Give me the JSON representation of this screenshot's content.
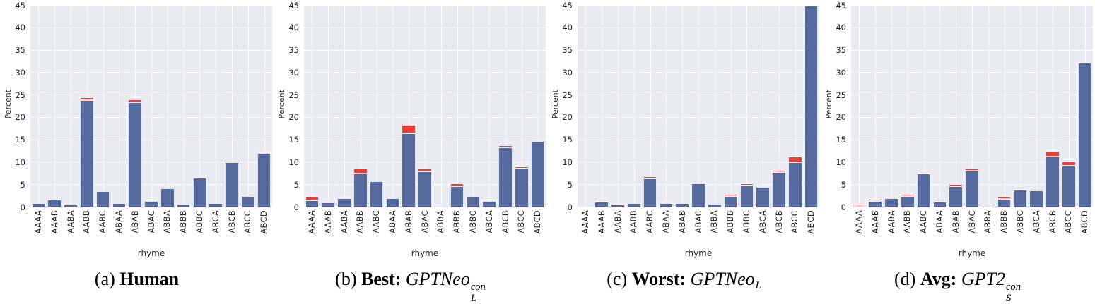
{
  "figure": {
    "ylabel": "Percent",
    "xlabel": "rhyme",
    "ymax": 45,
    "yticks": [
      0,
      5,
      10,
      15,
      20,
      25,
      30,
      35,
      40,
      45
    ],
    "categories": [
      "AAAA",
      "AAAB",
      "AABA",
      "AABB",
      "AABC",
      "ABAA",
      "ABAB",
      "ABAC",
      "ABBA",
      "ABBB",
      "ABBC",
      "ABCA",
      "ABCB",
      "ABCC",
      "ABCD"
    ],
    "colors": {
      "bar_primary": "#56699c",
      "bar_top": "#ee3b33",
      "plot_background": "#eaeaf2",
      "gridline": "#ffffff",
      "tick_text": "#262626"
    }
  },
  "chart_data": [
    {
      "type": "bar",
      "subtype": "stacked",
      "caption": {
        "index": "(a)",
        "label": "Human",
        "colon": "",
        "model": null
      },
      "xlabel": "rhyme",
      "ylabel": "Percent",
      "ylim": [
        0,
        45
      ],
      "grid": true,
      "legend": false,
      "categories": [
        "AAAA",
        "AAAB",
        "AABA",
        "AABB",
        "AABC",
        "ABAA",
        "ABAB",
        "ABAC",
        "ABBA",
        "ABBB",
        "ABBC",
        "ABCA",
        "ABCB",
        "ABCC",
        "ABCD"
      ],
      "series": [
        {
          "name": "primary",
          "values": [
            1.0,
            1.7,
            0.7,
            24.0,
            3.6,
            1.0,
            23.4,
            1.5,
            4.3,
            0.8,
            6.6,
            1.0,
            10.0,
            2.6,
            12.2
          ]
        },
        {
          "name": "top",
          "values": [
            0,
            0,
            0,
            0.5,
            0,
            0,
            0.7,
            0,
            0,
            0,
            0,
            0,
            0,
            0,
            0.3
          ]
        }
      ]
    },
    {
      "type": "bar",
      "subtype": "stacked",
      "caption": {
        "index": "(b)",
        "label": "Best",
        "colon": ":",
        "model": {
          "base": "GPTNeo",
          "sub": "L",
          "sup": "con"
        }
      },
      "xlabel": "rhyme",
      "ylabel": "Percent",
      "ylim": [
        0,
        45
      ],
      "grid": true,
      "legend": false,
      "categories": [
        "AAAA",
        "AAAB",
        "AABA",
        "AABB",
        "AABC",
        "ABAA",
        "ABAB",
        "ABAC",
        "ABBA",
        "ABBB",
        "ABBC",
        "ABCA",
        "ABCB",
        "ABCC",
        "ABCD"
      ],
      "series": [
        {
          "name": "primary",
          "values": [
            1.6,
            1.1,
            2.0,
            7.5,
            5.8,
            2.1,
            16.5,
            8.0,
            0.1,
            4.8,
            2.3,
            1.5,
            13.4,
            8.6,
            14.8
          ]
        },
        {
          "name": "top",
          "values": [
            0.8,
            0.3,
            0.4,
            1.1,
            0,
            0,
            1.9,
            0.6,
            0,
            0.5,
            0,
            0,
            0.5,
            0.5,
            0
          ]
        }
      ]
    },
    {
      "type": "bar",
      "subtype": "stacked",
      "caption": {
        "index": "(c)",
        "label": "Worst",
        "colon": ":",
        "model": {
          "base": "GPTNeo",
          "sub": "L",
          "sup": ""
        }
      },
      "xlabel": "rhyme",
      "ylabel": "Percent",
      "ylim": [
        0,
        45
      ],
      "grid": true,
      "legend": false,
      "categories": [
        "AAAA",
        "AAAB",
        "AABA",
        "AABB",
        "AABC",
        "ABAA",
        "ABAB",
        "ABAC",
        "ABBA",
        "ABBB",
        "ABBC",
        "ABCA",
        "ABCB",
        "ABCC",
        "ABCD"
      ],
      "series": [
        {
          "name": "primary",
          "values": [
            0,
            1.3,
            0.6,
            1.0,
            6.4,
            1.0,
            1.0,
            5.4,
            0.8,
            2.5,
            4.9,
            4.5,
            7.9,
            10.0,
            45.0
          ]
        },
        {
          "name": "top",
          "values": [
            0,
            0.3,
            0.25,
            0,
            0.45,
            0.2,
            0,
            0,
            0,
            0.45,
            0.45,
            0,
            0.5,
            1.3,
            0
          ]
        }
      ]
    },
    {
      "type": "bar",
      "subtype": "stacked",
      "caption": {
        "index": "(d)",
        "label": "Avg",
        "colon": ":",
        "model": {
          "base": "GPT2",
          "sub": "S",
          "sup": "con"
        }
      },
      "xlabel": "rhyme",
      "ylabel": "Percent",
      "ylim": [
        0,
        45
      ],
      "grid": true,
      "legend": false,
      "categories": [
        "AAAA",
        "AAAB",
        "AABA",
        "AABB",
        "AABC",
        "ABAA",
        "ABAB",
        "ABAC",
        "ABBA",
        "ABBB",
        "ABBC",
        "ABCA",
        "ABCB",
        "ABCC",
        "ABCD"
      ],
      "series": [
        {
          "name": "primary",
          "values": [
            0.4,
            1.4,
            2.0,
            2.5,
            7.5,
            1.2,
            4.7,
            8.2,
            0.3,
            1.9,
            3.9,
            3.8,
            11.4,
            9.3,
            32.3
          ]
        },
        {
          "name": "top",
          "values": [
            0.35,
            0.5,
            0.4,
            0.5,
            0.25,
            0,
            0.45,
            0.5,
            0,
            0.5,
            0.3,
            0,
            1.2,
            1.0,
            0
          ]
        }
      ]
    }
  ]
}
